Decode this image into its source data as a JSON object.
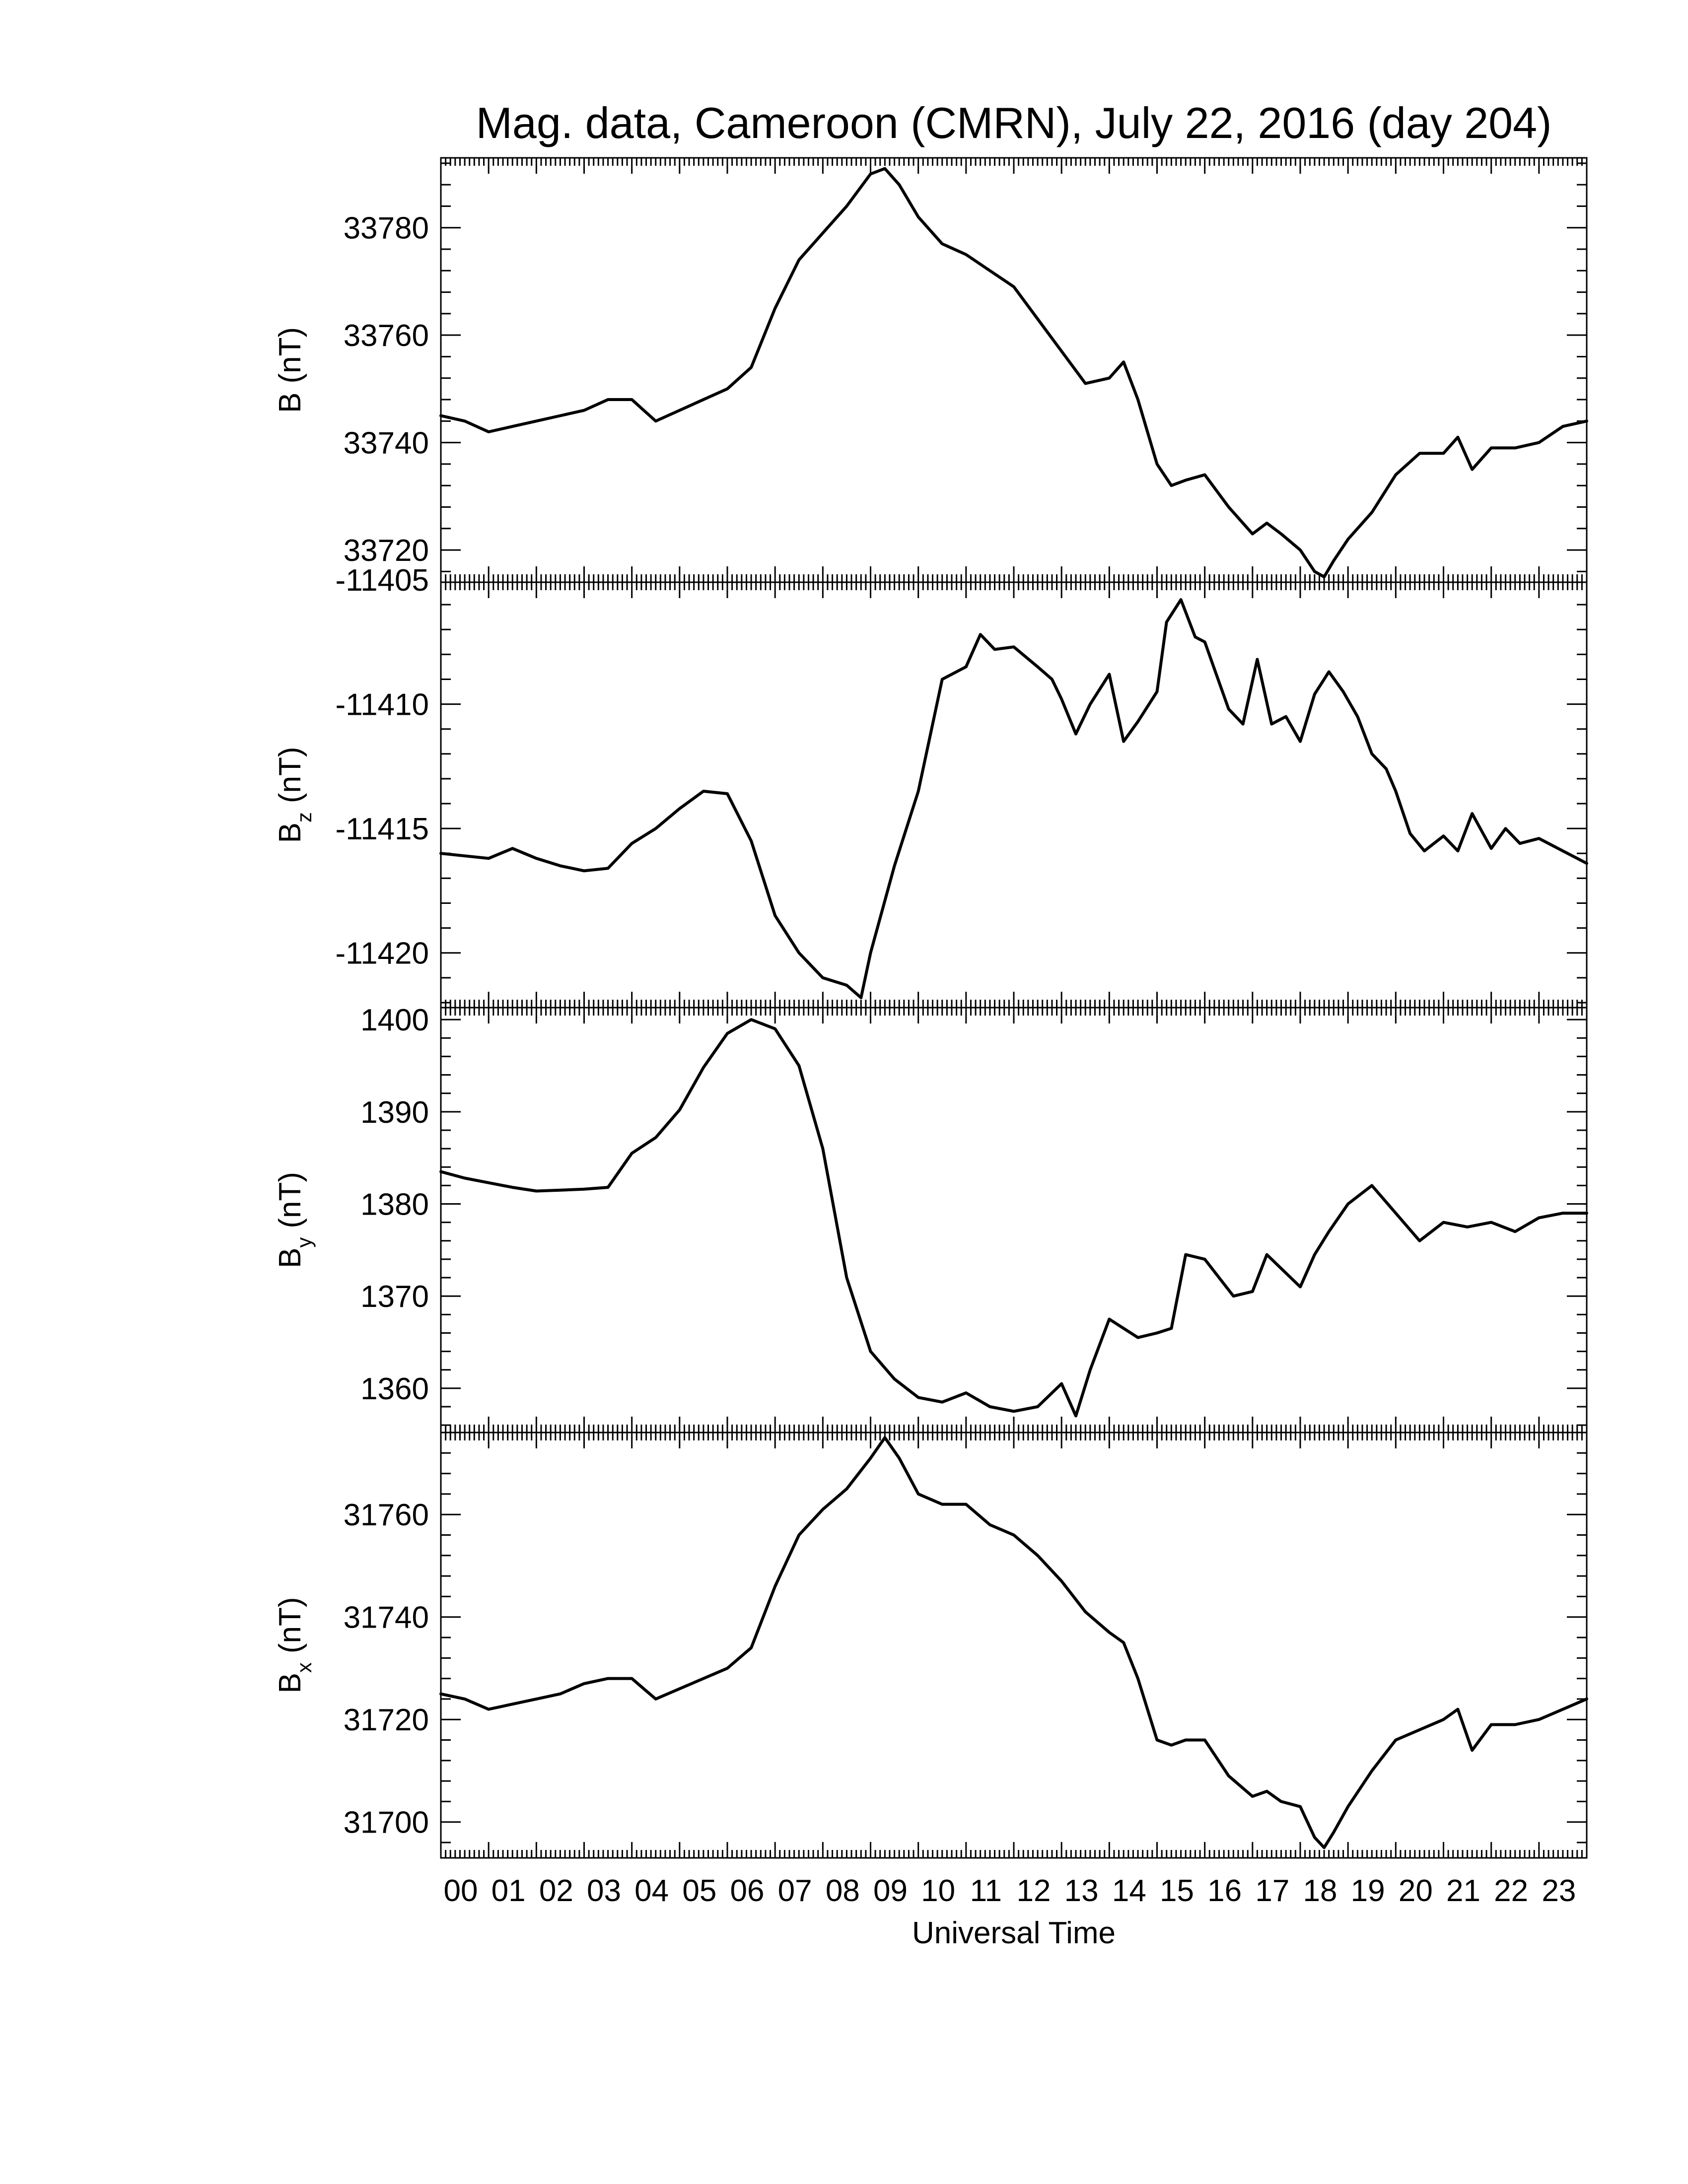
{
  "chart_data": {
    "type": "line",
    "title": "Mag. data, Cameroon (CMRN), July 22, 2016 (day 204)",
    "xlabel": "Universal Time",
    "xlim": [
      0,
      24
    ],
    "x_tick_labels": [
      "00",
      "01",
      "02",
      "03",
      "04",
      "05",
      "06",
      "07",
      "08",
      "09",
      "10",
      "11",
      "12",
      "13",
      "14",
      "15",
      "16",
      "17",
      "18",
      "19",
      "20",
      "21",
      "22",
      "23"
    ],
    "panels": [
      {
        "name": "B",
        "ylabel": {
          "main": "B",
          "sub": "",
          "unit": "(nT)"
        },
        "ylim": [
          33714,
          33793
        ],
        "yticks": [
          33720,
          33740,
          33760,
          33780
        ],
        "x": [
          0,
          0.5,
          1,
          1.5,
          2,
          2.5,
          3,
          3.5,
          4,
          4.25,
          4.5,
          5,
          5.5,
          6,
          6.5,
          7,
          7.5,
          8,
          8.5,
          9,
          9.3,
          9.6,
          10,
          10.5,
          11,
          11.5,
          12,
          12.5,
          13,
          13.5,
          14,
          14.3,
          14.6,
          15,
          15.3,
          15.6,
          16,
          16.5,
          17,
          17.3,
          17.6,
          18,
          18.3,
          18.5,
          18.7,
          19,
          19.5,
          20,
          20.5,
          21,
          21.3,
          21.6,
          22,
          22.5,
          23,
          23.5,
          24
        ],
        "values": [
          33745,
          33744,
          33742,
          33743,
          33744,
          33745,
          33746,
          33748,
          33748,
          33746,
          33744,
          33746,
          33748,
          33750,
          33754,
          33765,
          33774,
          33779,
          33784,
          33790,
          33791,
          33788,
          33782,
          33777,
          33775,
          33772,
          33769,
          33763,
          33757,
          33751,
          33752,
          33755,
          33748,
          33736,
          33732,
          33733,
          33734,
          33728,
          33723,
          33725,
          33723,
          33720,
          33716,
          33715,
          33718,
          33722,
          33727,
          33734,
          33738,
          33738,
          33741,
          33735,
          33739,
          33739,
          33740,
          33743,
          33744
        ]
      },
      {
        "name": "Bz",
        "ylabel": {
          "main": "B",
          "sub": "z",
          "unit": "(nT)"
        },
        "ylim": [
          -11422.2,
          -11405.1
        ],
        "yticks": [
          -11420,
          -11415,
          -11410,
          -11405
        ],
        "x": [
          0,
          0.5,
          1,
          1.5,
          2,
          2.5,
          3,
          3.5,
          4,
          4.5,
          5,
          5.5,
          6,
          6.5,
          7,
          7.5,
          8,
          8.5,
          8.8,
          9,
          9.5,
          10,
          10.5,
          11,
          11.3,
          11.6,
          12,
          12.5,
          12.8,
          13,
          13.3,
          13.6,
          14,
          14.3,
          14.6,
          15,
          15.2,
          15.5,
          15.8,
          16,
          16.5,
          16.8,
          17.1,
          17.4,
          17.7,
          18,
          18.3,
          18.6,
          18.9,
          19.2,
          19.5,
          19.8,
          20,
          20.3,
          20.6,
          21,
          21.3,
          21.6,
          22,
          22.3,
          22.6,
          23,
          23.5,
          24
        ],
        "values": [
          -11416,
          -11416.1,
          -11416.2,
          -11415.8,
          -11416.2,
          -11416.5,
          -11416.7,
          -11416.6,
          -11415.6,
          -11415.0,
          -11414.2,
          -11413.5,
          -11413.6,
          -11415.5,
          -11418.5,
          -11420.0,
          -11421.0,
          -11421.3,
          -11421.8,
          -11420.0,
          -11416.5,
          -11413.5,
          -11409.0,
          -11408.5,
          -11407.2,
          -11407.8,
          -11407.7,
          -11408.5,
          -11409.0,
          -11409.8,
          -11411.2,
          -11410.0,
          -11408.8,
          -11411.5,
          -11410.7,
          -11409.5,
          -11406.7,
          -11405.8,
          -11407.3,
          -11407.5,
          -11410.2,
          -11410.8,
          -11408.2,
          -11410.8,
          -11410.5,
          -11411.5,
          -11409.6,
          -11408.7,
          -11409.5,
          -11410.5,
          -11412.0,
          -11412.6,
          -11413.5,
          -11415.2,
          -11415.9,
          -11415.3,
          -11415.9,
          -11414.4,
          -11415.8,
          -11415.0,
          -11415.6,
          -11415.4,
          -11415.9,
          -11416.4
        ]
      },
      {
        "name": "By",
        "ylabel": {
          "main": "B",
          "sub": "y",
          "unit": "(nT)"
        },
        "ylim": [
          1355.2,
          1401.3
        ],
        "yticks": [
          1360,
          1370,
          1380,
          1390,
          1400
        ],
        "x": [
          0,
          0.5,
          1,
          1.5,
          2,
          2.5,
          3,
          3.5,
          4,
          4.5,
          5,
          5.5,
          6,
          6.5,
          7,
          7.5,
          8,
          8.5,
          9,
          9.5,
          10,
          10.5,
          11,
          11.5,
          12,
          12.5,
          13,
          13.3,
          13.6,
          14,
          14.3,
          14.6,
          15,
          15.3,
          15.6,
          16,
          16.3,
          16.6,
          17,
          17.3,
          17.6,
          18,
          18.3,
          18.6,
          19,
          19.5,
          20,
          20.5,
          21,
          21.5,
          22,
          22.5,
          23,
          23.5,
          24
        ],
        "values": [
          1383.5,
          1382.8,
          1382.3,
          1381.8,
          1381.4,
          1381.5,
          1381.6,
          1381.8,
          1385.5,
          1387.2,
          1390.2,
          1394.8,
          1398.5,
          1400.0,
          1399.0,
          1395.0,
          1386.0,
          1372.0,
          1364.0,
          1361.0,
          1359.0,
          1358.5,
          1359.5,
          1358.0,
          1357.5,
          1358.0,
          1360.5,
          1357.0,
          1362.0,
          1367.5,
          1366.5,
          1365.5,
          1366.0,
          1366.5,
          1374.5,
          1374.0,
          1372.0,
          1370.0,
          1370.5,
          1374.5,
          1373.0,
          1371.0,
          1374.5,
          1377.0,
          1380.0,
          1382.0,
          1379.0,
          1376.0,
          1378.0,
          1377.5,
          1378.0,
          1377.0,
          1378.5,
          1379.0,
          1379.0
        ]
      },
      {
        "name": "Bx",
        "ylabel": {
          "main": "B",
          "sub": "x",
          "unit": "(nT)"
        },
        "ylim": [
          31693,
          31776
        ],
        "yticks": [
          31700,
          31720,
          31740,
          31760
        ],
        "x": [
          0,
          0.5,
          1,
          1.5,
          2,
          2.5,
          3,
          3.5,
          4,
          4.25,
          4.5,
          5,
          5.5,
          6,
          6.5,
          7,
          7.5,
          8,
          8.5,
          9,
          9.3,
          9.6,
          10,
          10.5,
          11,
          11.5,
          12,
          12.5,
          13,
          13.5,
          14,
          14.3,
          14.6,
          15,
          15.3,
          15.6,
          16,
          16.5,
          17,
          17.3,
          17.6,
          18,
          18.3,
          18.5,
          18.7,
          19,
          19.5,
          20,
          20.5,
          21,
          21.3,
          21.6,
          22,
          22.5,
          23,
          23.5,
          24
        ],
        "values": [
          31725,
          31724,
          31722,
          31723,
          31724,
          31725,
          31727,
          31728,
          31728,
          31726,
          31724,
          31726,
          31728,
          31730,
          31734,
          31746,
          31756,
          31761,
          31765,
          31771,
          31775,
          31771,
          31764,
          31762,
          31762,
          31758,
          31756,
          31752,
          31747,
          31741,
          31737,
          31735,
          31728,
          31716,
          31715,
          31716,
          31716,
          31709,
          31705,
          31706,
          31704,
          31703,
          31697,
          31695,
          31698,
          31703,
          31710,
          31716,
          31718,
          31720,
          31722,
          31714,
          31719,
          31719,
          31720,
          31722,
          31724
        ]
      }
    ]
  }
}
